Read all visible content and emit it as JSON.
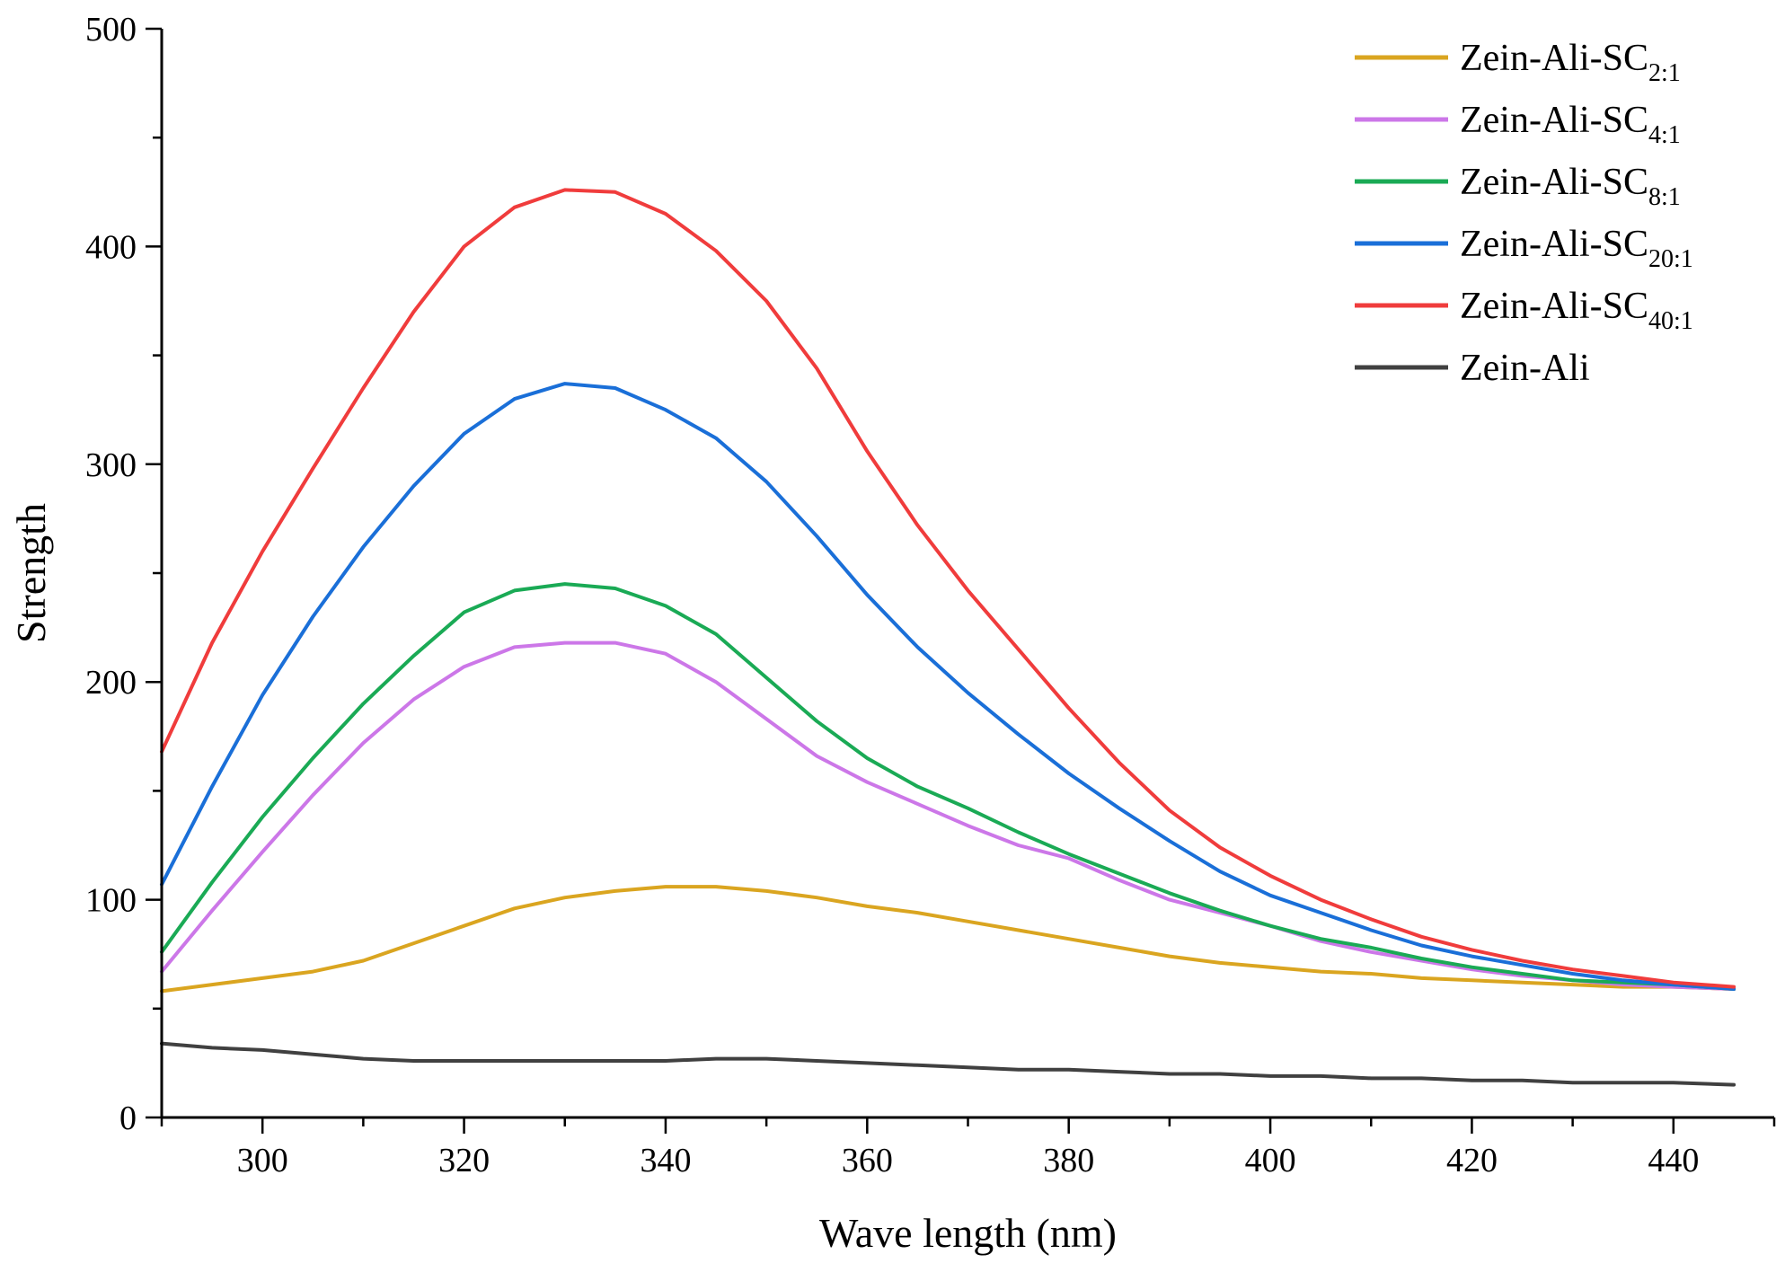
{
  "chart_data": {
    "type": "line",
    "title": "",
    "xlabel": "Wave length (nm)",
    "ylabel": "Strength",
    "xlim": [
      290,
      450
    ],
    "ylim": [
      0,
      500
    ],
    "xticks": [
      300,
      320,
      340,
      360,
      380,
      400,
      420,
      440
    ],
    "yticks": [
      0,
      100,
      200,
      300,
      400,
      500
    ],
    "grid": false,
    "legend_position": "top-right",
    "x": [
      290,
      295,
      300,
      305,
      310,
      315,
      320,
      325,
      330,
      335,
      340,
      345,
      350,
      355,
      360,
      365,
      370,
      375,
      380,
      385,
      390,
      395,
      400,
      405,
      410,
      415,
      420,
      425,
      430,
      435,
      440,
      446
    ],
    "series": [
      {
        "name": "Zein-Ali-SC2:1",
        "base": "Zein-Ali-SC",
        "sub": "2:1",
        "color": "#DAA520",
        "values": [
          58,
          61,
          64,
          67,
          72,
          80,
          88,
          96,
          101,
          104,
          106,
          106,
          104,
          101,
          97,
          94,
          90,
          86,
          82,
          78,
          74,
          71,
          69,
          67,
          66,
          64,
          63,
          62,
          61,
          60,
          60,
          59
        ]
      },
      {
        "name": "Zein-Ali-SC4:1",
        "base": "Zein-Ali-SC",
        "sub": "4:1",
        "color": "#CC77E8",
        "values": [
          67,
          95,
          122,
          148,
          172,
          192,
          207,
          216,
          218,
          218,
          213,
          200,
          183,
          166,
          154,
          144,
          134,
          125,
          119,
          109,
          100,
          94,
          88,
          81,
          76,
          72,
          68,
          65,
          63,
          61,
          60,
          59
        ]
      },
      {
        "name": "Zein-Ali-SC8:1",
        "base": "Zein-Ali-SC",
        "sub": "8:1",
        "color": "#1AAA55",
        "values": [
          76,
          108,
          138,
          165,
          190,
          212,
          232,
          242,
          245,
          243,
          235,
          222,
          202,
          182,
          165,
          152,
          142,
          131,
          121,
          112,
          103,
          95,
          88,
          82,
          78,
          73,
          69,
          66,
          63,
          62,
          61,
          59
        ]
      },
      {
        "name": "Zein-Ali-SC20:1",
        "base": "Zein-Ali-SC",
        "sub": "20:1",
        "color": "#1A6FD8",
        "values": [
          107,
          152,
          194,
          230,
          262,
          290,
          314,
          330,
          337,
          335,
          325,
          312,
          292,
          267,
          240,
          216,
          195,
          176,
          158,
          142,
          127,
          113,
          102,
          94,
          86,
          79,
          74,
          70,
          66,
          63,
          61,
          59
        ]
      },
      {
        "name": "Zein-Ali-SC40:1",
        "base": "Zein-Ali-SC",
        "sub": "40:1",
        "color": "#F03C3C",
        "values": [
          168,
          218,
          260,
          298,
          335,
          370,
          400,
          418,
          426,
          425,
          415,
          398,
          375,
          344,
          306,
          272,
          242,
          215,
          188,
          163,
          141,
          124,
          111,
          100,
          91,
          83,
          77,
          72,
          68,
          65,
          62,
          60
        ]
      },
      {
        "name": "Zein-Ali",
        "base": "Zein-Ali",
        "sub": "",
        "color": "#404040",
        "values": [
          34,
          32,
          31,
          29,
          27,
          26,
          26,
          26,
          26,
          26,
          26,
          27,
          27,
          26,
          25,
          24,
          23,
          22,
          22,
          21,
          20,
          20,
          19,
          19,
          18,
          18,
          17,
          17,
          16,
          16,
          16,
          15
        ]
      }
    ]
  }
}
